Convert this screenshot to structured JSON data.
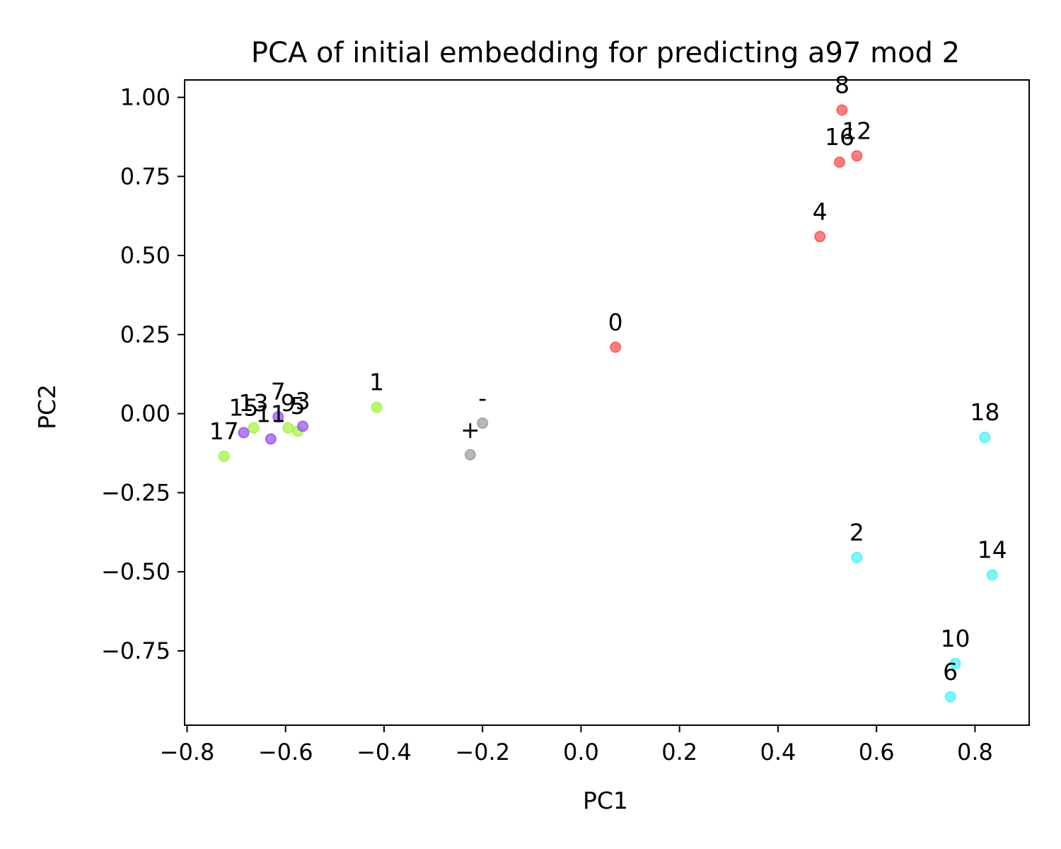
{
  "chart_data": {
    "type": "scatter",
    "title": "PCA of initial embedding for predicting a97 mod 2",
    "xlabel": "PC1",
    "ylabel": "PC2",
    "xlim": [
      -0.805,
      0.91
    ],
    "ylim": [
      -0.985,
      1.055
    ],
    "grid": false,
    "x_ticks": [
      {
        "value": -0.8,
        "label": "−0.8"
      },
      {
        "value": -0.6,
        "label": "−0.6"
      },
      {
        "value": -0.4,
        "label": "−0.4"
      },
      {
        "value": -0.2,
        "label": "−0.2"
      },
      {
        "value": 0.0,
        "label": "0.0"
      },
      {
        "value": 0.2,
        "label": "0.2"
      },
      {
        "value": 0.4,
        "label": "0.4"
      },
      {
        "value": 0.6,
        "label": "0.6"
      },
      {
        "value": 0.8,
        "label": "0.8"
      }
    ],
    "y_ticks": [
      {
        "value": 1.0,
        "label": "1.00"
      },
      {
        "value": 0.75,
        "label": "0.75"
      },
      {
        "value": 0.5,
        "label": "0.50"
      },
      {
        "value": 0.25,
        "label": "0.25"
      },
      {
        "value": 0.0,
        "label": "0.00"
      },
      {
        "value": -0.25,
        "label": "−0.25"
      },
      {
        "value": -0.5,
        "label": "−0.50"
      },
      {
        "value": -0.75,
        "label": "−0.75"
      }
    ],
    "colors": {
      "red": "#ff5555",
      "green": "#a6f542",
      "purple": "#9b59f5",
      "cyan": "#4ff5f5",
      "gray": "#a0a0a0"
    },
    "points": [
      {
        "label": "8",
        "x": 0.53,
        "y": 0.96,
        "color": "red"
      },
      {
        "label": "12",
        "x": 0.56,
        "y": 0.815,
        "color": "red"
      },
      {
        "label": "16",
        "x": 0.525,
        "y": 0.795,
        "color": "red"
      },
      {
        "label": "4",
        "x": 0.485,
        "y": 0.56,
        "color": "red"
      },
      {
        "label": "0",
        "x": 0.07,
        "y": 0.21,
        "color": "red"
      },
      {
        "label": "1",
        "x": -0.415,
        "y": 0.02,
        "color": "green"
      },
      {
        "label": "17",
        "x": -0.725,
        "y": -0.135,
        "color": "green"
      },
      {
        "label": "13",
        "x": -0.665,
        "y": -0.045,
        "color": "green"
      },
      {
        "label": "9",
        "x": -0.595,
        "y": -0.045,
        "color": "green"
      },
      {
        "label": "5",
        "x": -0.575,
        "y": -0.055,
        "color": "green"
      },
      {
        "label": "15",
        "x": -0.685,
        "y": -0.06,
        "color": "purple"
      },
      {
        "label": "11",
        "x": -0.63,
        "y": -0.08,
        "color": "purple"
      },
      {
        "label": "7",
        "x": -0.615,
        "y": -0.01,
        "color": "purple"
      },
      {
        "label": "3",
        "x": -0.565,
        "y": -0.04,
        "color": "purple"
      },
      {
        "label": "-",
        "x": -0.2,
        "y": -0.03,
        "color": "gray"
      },
      {
        "label": "+",
        "x": -0.225,
        "y": -0.13,
        "color": "gray"
      },
      {
        "label": "18",
        "x": 0.82,
        "y": -0.075,
        "color": "cyan"
      },
      {
        "label": "2",
        "x": 0.56,
        "y": -0.455,
        "color": "cyan"
      },
      {
        "label": "14",
        "x": 0.835,
        "y": -0.51,
        "color": "cyan"
      },
      {
        "label": "10",
        "x": 0.76,
        "y": -0.79,
        "color": "cyan"
      },
      {
        "label": "6",
        "x": 0.75,
        "y": -0.895,
        "color": "cyan"
      }
    ]
  }
}
